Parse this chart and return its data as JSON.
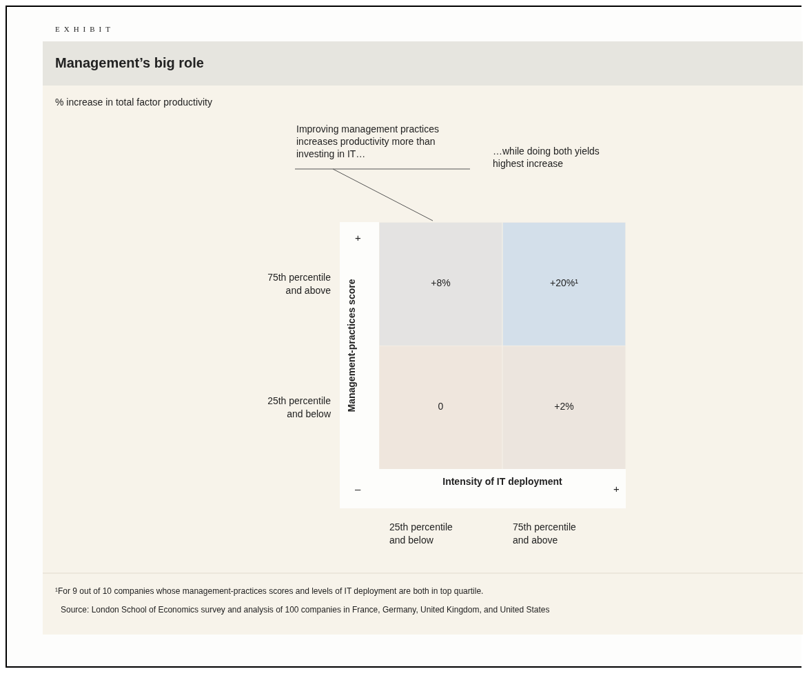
{
  "chart_data": {
    "type": "heatmap",
    "title": "Management’s big role",
    "subtitle": "% increase in total factor productivity",
    "xlabel": "Intensity of IT deployment",
    "ylabel": "Management-practices score",
    "categories": [
      "25th percentile and below",
      "75th percentile and above"
    ],
    "y_categories": [
      "75th percentile and above",
      "25th percentile and below"
    ],
    "cells": [
      [
        8,
        20
      ],
      [
        0,
        2
      ]
    ],
    "cell_labels": [
      [
        "+8%",
        "+20%¹"
      ],
      [
        "0",
        "+2%"
      ]
    ],
    "annotations": [
      "EXHIBIT",
      "Improving management practices increases productivity more than investing in IT…",
      "…while doing both yields highest increase",
      "+",
      "–",
      "+",
      "¹For 9 out of 10 companies whose management-practices scores and levels of IT deployment are both in top quartile.",
      "Source: London School of Economics survey and analysis of 100 companies in France, Germany, United Kingdom, and United States"
    ]
  }
}
